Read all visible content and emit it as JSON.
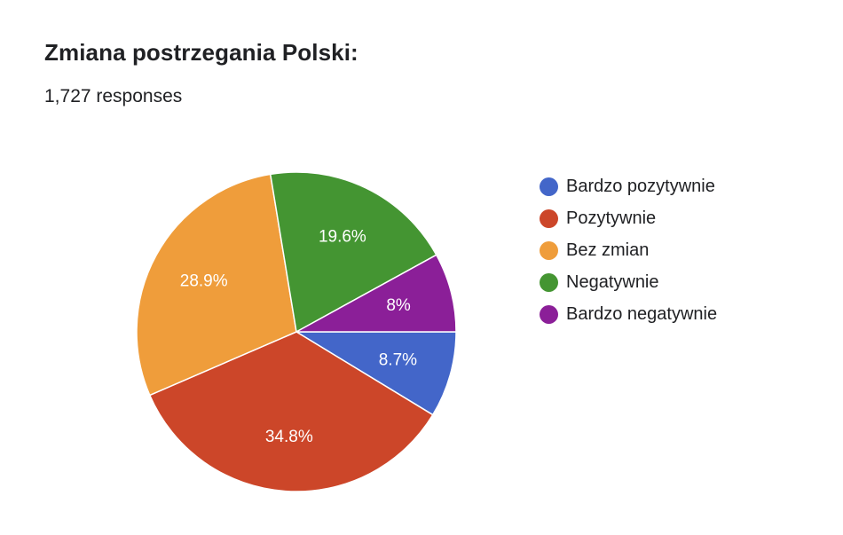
{
  "header": {
    "title": "Zmiana postrzegania Polski:",
    "responses": "1,727 responses"
  },
  "chart_data": {
    "type": "pie",
    "title": "Zmiana postrzegania Polski:",
    "subtitle": "1,727 responses",
    "legend_position": "right",
    "start_angle_deg": 0,
    "direction": "clockwise",
    "slices": [
      {
        "label": "Bardzo pozytywnie",
        "value": 8.7,
        "display": "8.7%",
        "color": "#4366c9"
      },
      {
        "label": "Pozytywnie",
        "value": 34.8,
        "display": "34.8%",
        "color": "#cc4629"
      },
      {
        "label": "Bez zmian",
        "value": 28.9,
        "display": "28.9%",
        "color": "#ef9d3b"
      },
      {
        "label": "Negatywnie",
        "value": 19.6,
        "display": "19.6%",
        "color": "#449532"
      },
      {
        "label": "Bardzo negatywnie",
        "value": 8.0,
        "display": "8%",
        "color": "#8b1f98"
      }
    ]
  }
}
